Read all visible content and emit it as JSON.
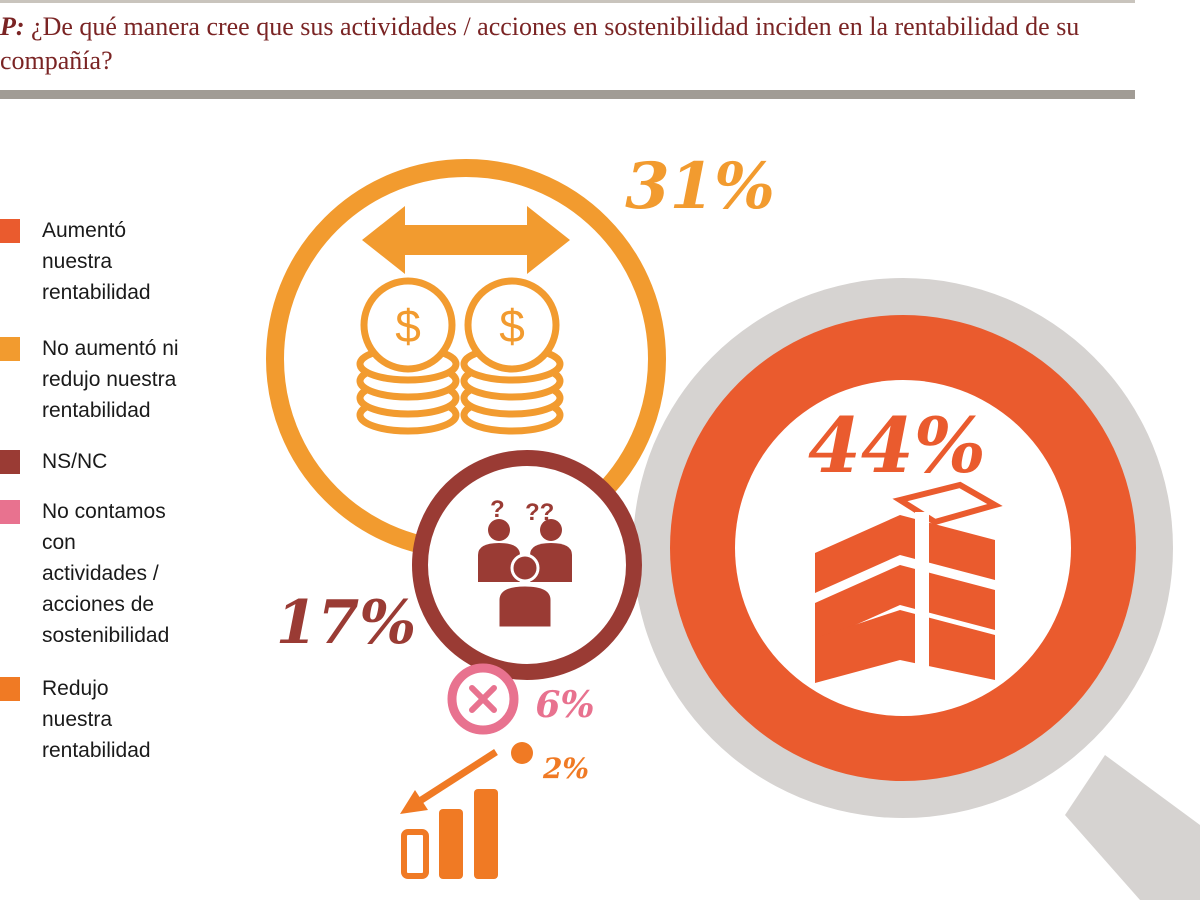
{
  "question": {
    "prefix": "P:",
    "text": " ¿De qué manera cree que sus actividades / acciones en sostenibilidad inciden en la rentabilidad de su compañía?"
  },
  "legend": [
    {
      "label": "Aumentó\nnuestra\nrentabilidad",
      "color": "#ea5b2e"
    },
    {
      "label": "No aumentó ni\nredujo nuestra\nrentabilidad",
      "color": "#f29b2f"
    },
    {
      "label": "NS/NC",
      "color": "#9a3b34"
    },
    {
      "label": "No contamos\ncon\nactividades /\nacciones de\nsostenibilidad",
      "color": "#e8728f"
    },
    {
      "label": "Redujo\nnuestra\nrentabilidad",
      "color": "#f07a24"
    }
  ],
  "chart_data": {
    "type": "pie",
    "title": "",
    "categories": [
      "Aumentó nuestra rentabilidad",
      "No aumentó ni redujo nuestra rentabilidad",
      "NS/NC",
      "No contamos con actividades / acciones de sostenibilidad",
      "Redujo nuestra rentabilidad"
    ],
    "values": [
      44,
      31,
      17,
      6,
      2
    ],
    "labels": [
      "44%",
      "31%",
      "17%",
      "6%",
      "2%"
    ],
    "colors": [
      "#ea5b2e",
      "#f29b2f",
      "#9a3b34",
      "#e8728f",
      "#f07a24"
    ],
    "icons": [
      "money-stack-icon",
      "dollar-coins-icon",
      "confused-people-icon",
      "close-x-icon",
      "declining-bars-icon"
    ],
    "magnifier_color": "#d6d3d1"
  }
}
